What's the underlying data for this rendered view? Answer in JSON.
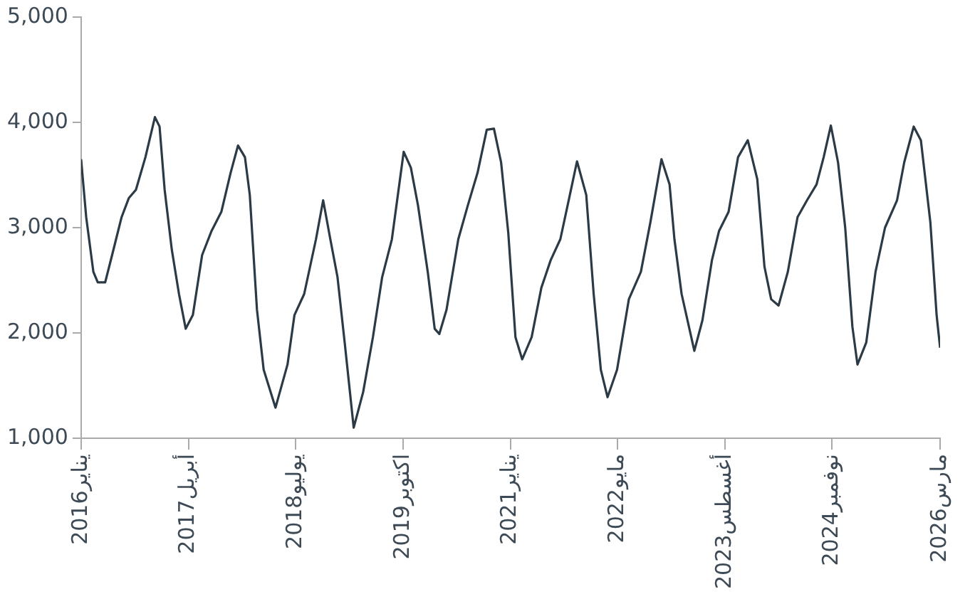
{
  "chart_data": {
    "type": "line",
    "x": [
      "2016-01-01",
      "2016-01-23",
      "2016-02-23",
      "2016-03-13",
      "2016-04-14",
      "2016-05-14",
      "2016-06-24",
      "2016-07-25",
      "2016-08-25",
      "2016-10-05",
      "2016-11-15",
      "2016-12-05",
      "2016-12-27",
      "2017-01-27",
      "2017-02-27",
      "2017-03-28",
      "2017-04-28",
      "2017-06-07",
      "2017-07-18",
      "2017-08-29",
      "2017-10-08",
      "2017-11-09",
      "2017-12-09",
      "2017-12-30",
      "2018-01-30",
      "2018-02-28",
      "2018-04-20",
      "2018-06-11",
      "2018-07-11",
      "2018-08-22",
      "2018-10-12",
      "2018-11-12",
      "2018-12-13",
      "2019-01-13",
      "2019-02-13",
      "2019-03-24",
      "2019-05-04",
      "2019-06-15",
      "2019-07-25",
      "2019-09-05",
      "2019-10-26",
      "2019-11-26",
      "2019-12-27",
      "2020-02-07",
      "2020-03-08",
      "2020-03-28",
      "2020-04-28",
      "2020-06-18",
      "2020-07-29",
      "2020-09-09",
      "2020-10-19",
      "2020-11-19",
      "2020-12-20",
      "2021-01-20",
      "2021-02-20",
      "2021-03-21",
      "2021-05-01",
      "2021-06-12",
      "2021-07-22",
      "2021-09-02",
      "2021-10-13",
      "2021-11-13",
      "2021-12-23",
      "2022-01-24",
      "2022-02-24",
      "2022-03-25",
      "2022-05-05",
      "2022-06-25",
      "2022-08-16",
      "2022-09-26",
      "2022-11-13",
      "2022-12-18",
      "2023-01-08",
      "2023-02-08",
      "2023-04-04",
      "2023-05-09",
      "2023-06-19",
      "2023-07-20",
      "2023-08-30",
      "2023-10-10",
      "2023-11-21",
      "2024-01-01",
      "2024-02-01",
      "2024-03-01",
      "2024-04-02",
      "2024-05-12",
      "2024-06-23",
      "2024-08-03",
      "2024-09-13",
      "2024-10-14",
      "2024-11-14",
      "2024-12-15",
      "2025-01-15",
      "2025-02-15",
      "2025-03-09",
      "2025-04-16",
      "2025-05-26",
      "2025-07-06",
      "2025-08-27",
      "2025-09-27",
      "2025-11-07",
      "2025-12-08",
      "2026-01-18",
      "2026-02-14",
      "2026-03-01"
    ],
    "series": [
      {
        "color": "#2b3a45",
        "values": [
          3650,
          3100,
          2580,
          2480,
          2480,
          2740,
          3100,
          3280,
          3360,
          3670,
          4050,
          3960,
          3360,
          2790,
          2370,
          2040,
          2170,
          2740,
          2970,
          3150,
          3520,
          3780,
          3670,
          3310,
          2220,
          1650,
          1290,
          1700,
          2170,
          2370,
          2890,
          3260,
          2890,
          2530,
          1910,
          1100,
          1440,
          1960,
          2530,
          2890,
          3720,
          3570,
          3210,
          2580,
          2040,
          1990,
          2220,
          2890,
          3210,
          3520,
          3930,
          3940,
          3620,
          2950,
          1960,
          1750,
          1960,
          2430,
          2690,
          2890,
          3310,
          3630,
          3310,
          2370,
          1650,
          1390,
          1650,
          2320,
          2580,
          3050,
          3650,
          3410,
          2890,
          2370,
          1830,
          2120,
          2690,
          2970,
          3150,
          3670,
          3830,
          3460,
          2630,
          2320,
          2260,
          2580,
          3100,
          3260,
          3410,
          3670,
          3970,
          3620,
          3000,
          2060,
          1700,
          1910,
          2580,
          3000,
          3260,
          3620,
          3960,
          3830,
          3050,
          2170,
          1860
        ]
      }
    ],
    "xlim": [
      "2016-01-01",
      "2026-03-01"
    ],
    "xticks": [
      {
        "value": "2016-01-01",
        "label": "يناير2016"
      },
      {
        "value": "2017-04-09",
        "label": "أبريل2017"
      },
      {
        "value": "2018-07-17",
        "label": "يوليو2018"
      },
      {
        "value": "2019-10-23",
        "label": "اكتوبر2019"
      },
      {
        "value": "2021-01-29",
        "label": "يناير2021"
      },
      {
        "value": "2022-05-08",
        "label": "مايو2022"
      },
      {
        "value": "2023-08-14",
        "label": "أغسطس2023"
      },
      {
        "value": "2024-11-19",
        "label": "نوفمبر2024"
      },
      {
        "value": "2026-03-01",
        "label": "مارس2026"
      }
    ],
    "ylim": [
      1000,
      5000
    ],
    "yticks": [
      {
        "value": 1000,
        "label": "1,000"
      },
      {
        "value": 2000,
        "label": "2,000"
      },
      {
        "value": 3000,
        "label": "3,000"
      },
      {
        "value": 4000,
        "label": "4,000"
      },
      {
        "value": 5000,
        "label": "5,000"
      }
    ],
    "grid": false,
    "legend": false,
    "marker": "none",
    "line_style": "solid"
  }
}
